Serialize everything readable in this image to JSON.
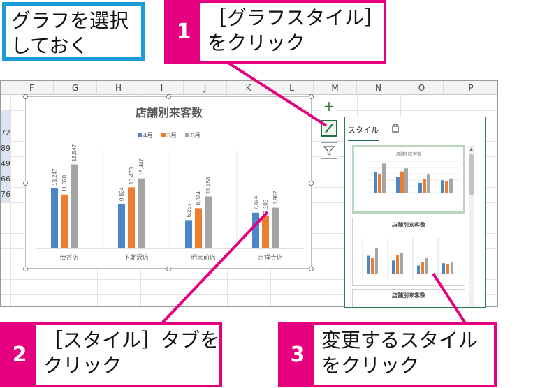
{
  "callouts": {
    "intro": {
      "line1": "グラフを選択",
      "line2": "しておく"
    },
    "step1": {
      "num": "1",
      "line1": "［グラフスタイル］",
      "line2": "をクリック"
    },
    "step2": {
      "num": "2",
      "line1": "［スタイル］タブを",
      "line2": "クリック"
    },
    "step3": {
      "num": "3",
      "line1": "変更するスタイル",
      "line2": "をクリック"
    }
  },
  "columns": [
    "F",
    "G",
    "H",
    "I",
    "J",
    "K",
    "L",
    "M",
    "N",
    "O",
    "P"
  ],
  "row_values": [
    "72",
    "89",
    "49",
    "66",
    "76"
  ],
  "chart": {
    "title": "店舗別来客数"
  },
  "chart_data": {
    "type": "bar",
    "title": "店舗別来客数",
    "categories": [
      "渋谷店",
      "下北沢店",
      "明大前店",
      "吉祥寺店"
    ],
    "series": [
      {
        "name": "4月",
        "values": [
          13247,
          9824,
          6257,
          7874
        ],
        "labels": [
          "13,247",
          "9,824",
          "6,257",
          "7,874"
        ]
      },
      {
        "name": "5月",
        "values": [
          11878,
          13478,
          8874,
          7105
        ],
        "labels": [
          "11,878",
          "13,478",
          "8,874",
          "7,105"
        ]
      },
      {
        "name": "6月",
        "values": [
          18547,
          15447,
          11458,
          8987
        ],
        "labels": [
          "18,547",
          "15,447",
          "11,458",
          "8,987"
        ]
      }
    ],
    "colors": [
      "#4a86c8",
      "#ed7d31",
      "#a5a5a5"
    ],
    "legend": "top",
    "ylim": [
      0,
      20000
    ]
  },
  "pane": {
    "tab_style": "スタイル",
    "tab_color_icon": "color-palette-icon",
    "thumb_title": "店舗別来客数"
  },
  "side_buttons": [
    "plus-icon",
    "paintbrush-icon",
    "filter-icon"
  ],
  "accent": {
    "pink": "#e4007f",
    "blue": "#1a9ad6",
    "excel_green": "#217346"
  }
}
